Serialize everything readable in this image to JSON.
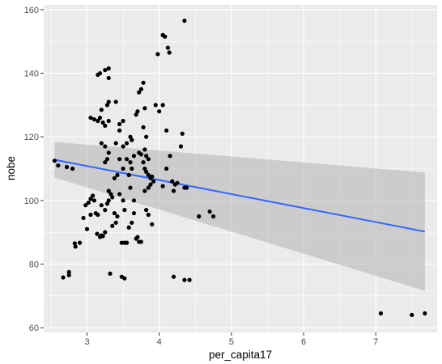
{
  "chart_data": {
    "type": "scatter",
    "title": "",
    "xlabel": "per_capita17",
    "ylabel": "nobe",
    "xlim": [
      2.4,
      7.85
    ],
    "ylim": [
      58.5,
      161.5
    ],
    "x_ticks": [
      3,
      4,
      5,
      6,
      7
    ],
    "y_ticks": [
      60,
      80,
      100,
      120,
      140,
      160
    ],
    "grid": true,
    "legend": "none",
    "colors": {
      "panel_bg": "#ebebeb",
      "grid": "#ffffff",
      "point": "#000000",
      "smooth_line": "#3366ff",
      "confidence_band": "#b3b3b3"
    },
    "points": [
      [
        2.55,
        112.5
      ],
      [
        2.6,
        111
      ],
      [
        2.72,
        110.5
      ],
      [
        2.8,
        110
      ],
      [
        2.67,
        75.8
      ],
      [
        2.75,
        76.5
      ],
      [
        2.75,
        77.5
      ],
      [
        2.83,
        86.5
      ],
      [
        2.84,
        85.5
      ],
      [
        2.9,
        86.7
      ],
      [
        2.95,
        94.5
      ],
      [
        2.98,
        98.5
      ],
      [
        3.02,
        99.3
      ],
      [
        3.05,
        100.5
      ],
      [
        3.08,
        101.5
      ],
      [
        3.1,
        100
      ],
      [
        3.05,
        95.5
      ],
      [
        3.12,
        96
      ],
      [
        3.15,
        95.5
      ],
      [
        3.0,
        91
      ],
      [
        3.14,
        89.5
      ],
      [
        3.18,
        88.5
      ],
      [
        3.2,
        89
      ],
      [
        3.22,
        88.8
      ],
      [
        3.25,
        90
      ],
      [
        3.05,
        126
      ],
      [
        3.1,
        125.5
      ],
      [
        3.15,
        125
      ],
      [
        3.18,
        126
      ],
      [
        3.22,
        124.5
      ],
      [
        3.25,
        123.5
      ],
      [
        3.3,
        125
      ],
      [
        3.2,
        128.5
      ],
      [
        3.28,
        130
      ],
      [
        3.3,
        131
      ],
      [
        3.15,
        139.5
      ],
      [
        3.18,
        140
      ],
      [
        3.25,
        141
      ],
      [
        3.3,
        141.5
      ],
      [
        3.3,
        138.5
      ],
      [
        3.2,
        118
      ],
      [
        3.25,
        117
      ],
      [
        3.3,
        115
      ],
      [
        3.25,
        112
      ],
      [
        3.28,
        113
      ],
      [
        3.3,
        100
      ],
      [
        3.33,
        102
      ],
      [
        3.35,
        101
      ],
      [
        3.38,
        96
      ],
      [
        3.35,
        92
      ],
      [
        3.4,
        93
      ],
      [
        3.42,
        95
      ],
      [
        3.2,
        98.5
      ],
      [
        3.25,
        97
      ],
      [
        3.28,
        99
      ],
      [
        3.32,
        77
      ],
      [
        3.3,
        103
      ],
      [
        3.4,
        131
      ],
      [
        3.45,
        124
      ],
      [
        3.5,
        125
      ],
      [
        3.45,
        122
      ],
      [
        3.4,
        118
      ],
      [
        3.5,
        117
      ],
      [
        3.45,
        113
      ],
      [
        3.5,
        110
      ],
      [
        3.42,
        108
      ],
      [
        3.38,
        107
      ],
      [
        3.45,
        102
      ],
      [
        3.5,
        100
      ],
      [
        3.52,
        97
      ],
      [
        3.48,
        86.7
      ],
      [
        3.52,
        86.7
      ],
      [
        3.55,
        86.7
      ],
      [
        3.48,
        76
      ],
      [
        3.52,
        75.5
      ],
      [
        3.55,
        118
      ],
      [
        3.6,
        120
      ],
      [
        3.62,
        119
      ],
      [
        3.55,
        113
      ],
      [
        3.6,
        112
      ],
      [
        3.65,
        114
      ],
      [
        3.62,
        110
      ],
      [
        3.58,
        108
      ],
      [
        3.6,
        104
      ],
      [
        3.65,
        100
      ],
      [
        3.65,
        96
      ],
      [
        3.62,
        93
      ],
      [
        3.58,
        91.5
      ],
      [
        3.7,
        88.5
      ],
      [
        3.72,
        87
      ],
      [
        3.68,
        88
      ],
      [
        3.75,
        87
      ],
      [
        3.7,
        128
      ],
      [
        3.68,
        127
      ],
      [
        3.72,
        134
      ],
      [
        3.75,
        135
      ],
      [
        3.78,
        137
      ],
      [
        3.8,
        129
      ],
      [
        3.78,
        123
      ],
      [
        3.82,
        120
      ],
      [
        3.72,
        115
      ],
      [
        3.75,
        114.5
      ],
      [
        3.8,
        116
      ],
      [
        3.82,
        114
      ],
      [
        3.85,
        113
      ],
      [
        3.78,
        112
      ],
      [
        3.8,
        110
      ],
      [
        3.82,
        109
      ],
      [
        3.85,
        108
      ],
      [
        3.88,
        107
      ],
      [
        3.9,
        107.5
      ],
      [
        3.92,
        106
      ],
      [
        3.88,
        105
      ],
      [
        3.85,
        104
      ],
      [
        3.8,
        103
      ],
      [
        3.82,
        97
      ],
      [
        3.85,
        95.5
      ],
      [
        3.9,
        92.5
      ],
      [
        3.95,
        130
      ],
      [
        4.0,
        128
      ],
      [
        4.05,
        130
      ],
      [
        3.98,
        146
      ],
      [
        4.05,
        152
      ],
      [
        4.08,
        151.5
      ],
      [
        4.12,
        148
      ],
      [
        4.14,
        146.5
      ],
      [
        4.35,
        156.5
      ],
      [
        4.1,
        122
      ],
      [
        4.15,
        114
      ],
      [
        4.1,
        110
      ],
      [
        4.18,
        106
      ],
      [
        4.22,
        105
      ],
      [
        4.25,
        105.5
      ],
      [
        4.2,
        103
      ],
      [
        4.05,
        104.5
      ],
      [
        4.3,
        117
      ],
      [
        4.32,
        121
      ],
      [
        4.35,
        104
      ],
      [
        4.38,
        104
      ],
      [
        4.2,
        76
      ],
      [
        4.35,
        75
      ],
      [
        4.42,
        75
      ],
      [
        4.55,
        95
      ],
      [
        4.7,
        96.5
      ],
      [
        4.75,
        95
      ],
      [
        7.07,
        64.5
      ],
      [
        7.5,
        64
      ],
      [
        7.68,
        64.5
      ]
    ],
    "smooth": {
      "method": "lm",
      "x": [
        2.55,
        7.68
      ],
      "y": [
        112.8,
        90.2
      ],
      "ci_lower": [
        107.2,
        71.6
      ],
      "ci_upper": [
        118.4,
        108.8
      ]
    }
  }
}
